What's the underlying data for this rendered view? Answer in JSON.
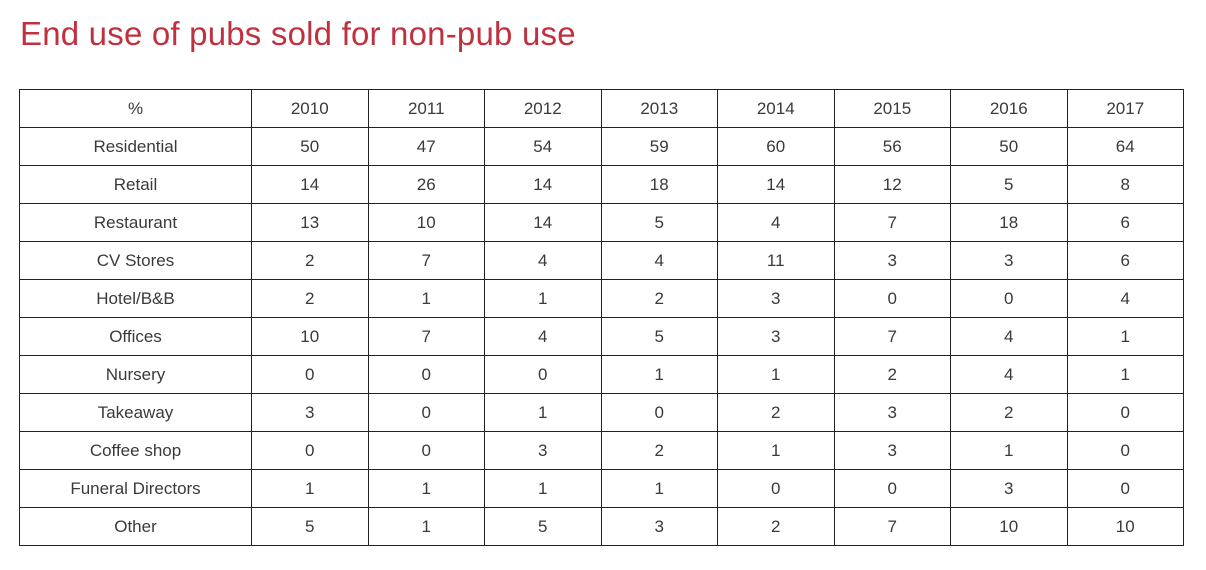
{
  "title": "End use of pubs sold for non-pub use",
  "table": {
    "headers": [
      "%",
      "2010",
      "2011",
      "2012",
      "2013",
      "2014",
      "2015",
      "2016",
      "2017"
    ],
    "rows": [
      [
        "Residential",
        "50",
        "47",
        "54",
        "59",
        "60",
        "56",
        "50",
        "64"
      ],
      [
        "Retail",
        "14",
        "26",
        "14",
        "18",
        "14",
        "12",
        "5",
        "8"
      ],
      [
        "Restaurant",
        "13",
        "10",
        "14",
        "5",
        "4",
        "7",
        "18",
        "6"
      ],
      [
        "CV Stores",
        "2",
        "7",
        "4",
        "4",
        "11",
        "3",
        "3",
        "6"
      ],
      [
        "Hotel/B&B",
        "2",
        "1",
        "1",
        "2",
        "3",
        "0",
        "0",
        "4"
      ],
      [
        "Offices",
        "10",
        "7",
        "4",
        "5",
        "3",
        "7",
        "4",
        "1"
      ],
      [
        "Nursery",
        "0",
        "0",
        "0",
        "1",
        "1",
        "2",
        "4",
        "1"
      ],
      [
        "Takeaway",
        "3",
        "0",
        "1",
        "0",
        "2",
        "3",
        "2",
        "0"
      ],
      [
        "Coffee shop",
        "0",
        "0",
        "3",
        "2",
        "1",
        "3",
        "1",
        "0"
      ],
      [
        "Funeral Directors",
        "1",
        "1",
        "1",
        "1",
        "0",
        "0",
        "3",
        "0"
      ],
      [
        "Other",
        "5",
        "1",
        "5",
        "3",
        "2",
        "7",
        "10",
        "10"
      ]
    ]
  },
  "colors": {
    "title": "#c0303f",
    "text": "#3a3a3a",
    "border": "#222222"
  }
}
